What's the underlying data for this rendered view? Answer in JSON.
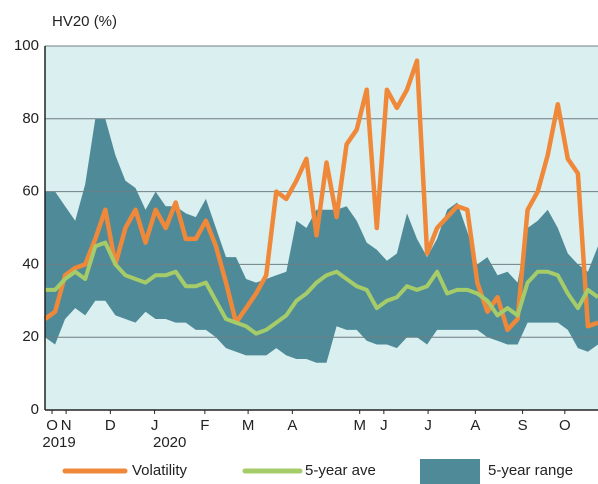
{
  "chart_data": {
    "type": "line",
    "y_label": "HV20 (%)",
    "x": [
      0,
      1,
      2,
      3,
      4,
      5,
      6,
      7,
      8,
      9,
      10,
      11,
      12,
      13,
      14,
      15,
      16,
      17,
      18,
      19,
      20,
      21,
      22,
      23,
      24,
      25,
      26,
      27,
      28,
      29,
      30,
      31,
      32,
      33,
      34,
      35,
      36,
      37,
      38,
      39,
      40,
      41,
      42,
      43,
      44,
      45,
      46,
      47,
      48,
      49,
      50,
      51,
      52,
      53,
      54,
      55
    ],
    "xlim": [
      0,
      55
    ],
    "xticks": [
      {
        "value": 0.7,
        "label": "O"
      },
      {
        "value": 2.1,
        "label": "N"
      },
      {
        "value": 6.5,
        "label": "D"
      },
      {
        "value": 10.9,
        "label": "J"
      },
      {
        "value": 15.9,
        "label": "F"
      },
      {
        "value": 20.2,
        "label": "M"
      },
      {
        "value": 24.6,
        "label": "A"
      },
      {
        "value": 31.3,
        "label": "M"
      },
      {
        "value": 33.7,
        "label": "J"
      },
      {
        "value": 38.1,
        "label": "J"
      },
      {
        "value": 42.8,
        "label": "A"
      },
      {
        "value": 47.5,
        "label": "S"
      },
      {
        "value": 51.7,
        "label": "O"
      }
    ],
    "year_labels": [
      {
        "value": 1.4,
        "label": "2019"
      },
      {
        "value": 12.4,
        "label": "2020"
      }
    ],
    "ylim": [
      0,
      100
    ],
    "yticks": [
      0,
      20,
      40,
      60,
      80,
      100
    ],
    "grid": true,
    "series": [
      {
        "name": "Volatility",
        "color": "#f0883a",
        "values": [
          25,
          27,
          37,
          39,
          40,
          47,
          55,
          40,
          50,
          55,
          46,
          55,
          50,
          57,
          47,
          47,
          52,
          45,
          35,
          24,
          28,
          32,
          37,
          60,
          58,
          63,
          69,
          48,
          68,
          53,
          73,
          77,
          88,
          50,
          88,
          83,
          88,
          96,
          43,
          50,
          53,
          56,
          55,
          35,
          27,
          31,
          22,
          25,
          55,
          60,
          70,
          84,
          69,
          65,
          23,
          24
        ]
      },
      {
        "name": "5-year ave",
        "color": "#a6cc6a",
        "values": [
          33,
          33,
          36,
          38,
          36,
          45,
          46,
          40,
          37,
          36,
          35,
          37,
          37,
          38,
          34,
          34,
          35,
          30,
          25,
          24,
          23,
          21,
          22,
          24,
          26,
          30,
          32,
          35,
          37,
          38,
          36,
          34,
          33,
          28,
          30,
          31,
          34,
          33,
          34,
          38,
          32,
          33,
          33,
          32,
          30,
          26,
          28,
          26,
          35,
          38,
          38,
          37,
          32,
          28,
          33,
          31
        ]
      },
      {
        "name": "5-year range",
        "color": "#4f8a98",
        "high": [
          60,
          60,
          56,
          52,
          62,
          80,
          80,
          70,
          63,
          61,
          55,
          60,
          56,
          56,
          54,
          53,
          58,
          50,
          42,
          42,
          36,
          35,
          36,
          37,
          38,
          52,
          50,
          55,
          55,
          55,
          56,
          52,
          46,
          44,
          41,
          43,
          54,
          47,
          42,
          47,
          55,
          57,
          49,
          40,
          42,
          37,
          38,
          35,
          50,
          52,
          55,
          50,
          43,
          40,
          38,
          45
        ],
        "low": [
          20,
          18,
          25,
          28,
          26,
          30,
          30,
          26,
          25,
          24,
          27,
          25,
          25,
          24,
          24,
          22,
          22,
          20,
          17,
          16,
          15,
          15,
          15,
          17,
          15,
          14,
          14,
          13,
          13,
          23,
          22,
          22,
          19,
          18,
          18,
          17,
          20,
          20,
          18,
          22,
          22,
          22,
          22,
          22,
          20,
          19,
          18,
          18,
          24,
          24,
          24,
          24,
          22,
          17,
          16,
          18
        ]
      }
    ]
  }
}
